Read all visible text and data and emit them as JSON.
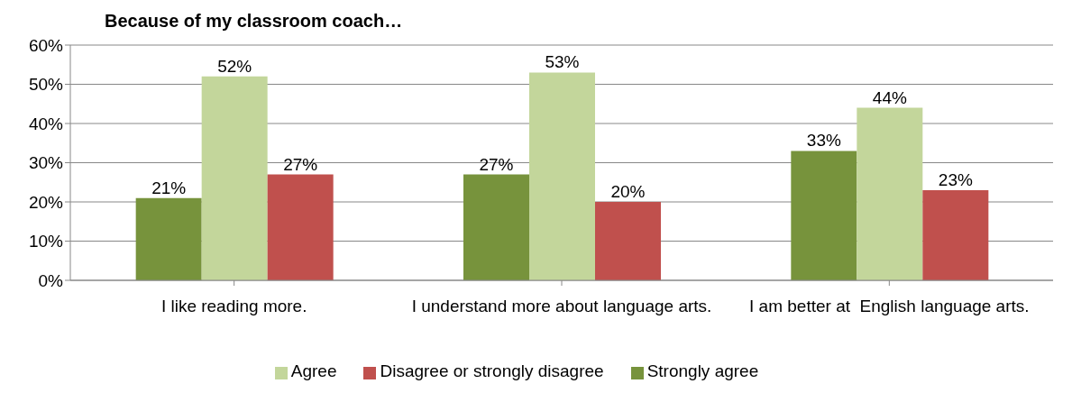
{
  "chart_data": {
    "type": "bar",
    "title": "Because of my classroom coach…",
    "categories": [
      "I like reading more.",
      "I understand more about language arts.",
      "I am better at  English language arts."
    ],
    "series": [
      {
        "name": "Strongly agree",
        "color": "#77933c",
        "values": [
          21,
          27,
          33
        ],
        "value_labels": [
          "21%",
          "27%",
          "33%"
        ]
      },
      {
        "name": "Agree",
        "color": "#c3d69b",
        "values": [
          52,
          53,
          44
        ],
        "value_labels": [
          "52%",
          "53%",
          "44%"
        ]
      },
      {
        "name": "Disagree or strongly disagree",
        "color": "#c0504d",
        "values": [
          27,
          20,
          23
        ],
        "value_labels": [
          "27%",
          "20%",
          "23%"
        ]
      }
    ],
    "ylim": [
      0,
      60
    ],
    "yticks": [
      {
        "value": 0,
        "label": "0%"
      },
      {
        "value": 10,
        "label": "10%"
      },
      {
        "value": 20,
        "label": "20%"
      },
      {
        "value": 30,
        "label": "30%"
      },
      {
        "value": 40,
        "label": "40%"
      },
      {
        "value": 50,
        "label": "50%"
      },
      {
        "value": 60,
        "label": "60%"
      }
    ],
    "grid": "y",
    "legend": "bottom"
  }
}
